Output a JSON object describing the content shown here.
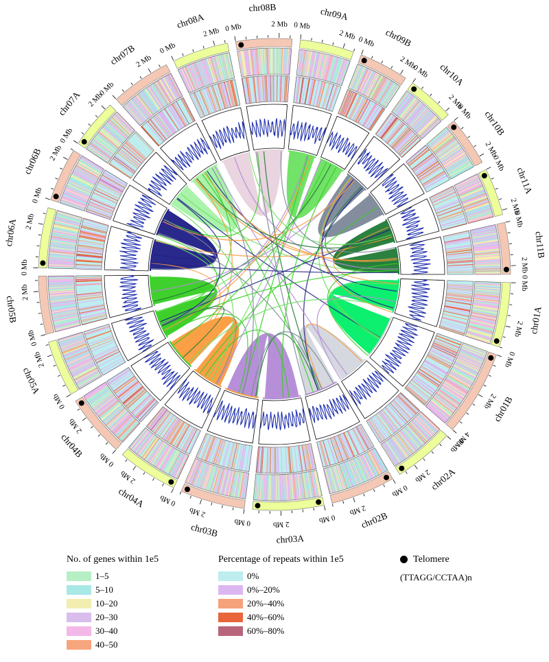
{
  "chart_data": {
    "type": "circos",
    "chromosomes": [
      {
        "name": "chr01A",
        "length_mb": 3.0,
        "color": "#00EE66",
        "band": "#ECFF9A",
        "telomere_start": false,
        "telomere_end": true
      },
      {
        "name": "chr01B",
        "length_mb": 4.0,
        "color": "#D3D6DD",
        "band": "#F4C8B4",
        "telomere_start": true,
        "telomere_end": false
      },
      {
        "name": "chr02A",
        "length_mb": 2.8,
        "color": "#D3D6DD",
        "band": "#ECFF9A",
        "telomere_start": false,
        "telomere_end": true
      },
      {
        "name": "chr02B",
        "length_mb": 3.0,
        "color": "#B289D6",
        "band": "#F4C8B4",
        "telomere_start": true,
        "telomere_end": false
      },
      {
        "name": "chr03A",
        "length_mb": 3.3,
        "color": "#B289D6",
        "band": "#ECFF9A",
        "telomere_start": true,
        "telomere_end": true
      },
      {
        "name": "chr03B",
        "length_mb": 3.0,
        "color": "#FA9B3C",
        "band": "#F4C8B4",
        "telomere_start": false,
        "telomere_end": true
      },
      {
        "name": "chr04A",
        "length_mb": 2.8,
        "color": "#FA9B3C",
        "band": "#ECFF9A",
        "telomere_start": true,
        "telomere_end": false
      },
      {
        "name": "chr04B",
        "length_mb": 2.9,
        "color": "#36CE22",
        "band": "#F4C8B4",
        "telomere_start": false,
        "telomere_end": true
      },
      {
        "name": "chr05A",
        "length_mb": 2.6,
        "color": "#36CE22",
        "band": "#ECFF9A",
        "telomere_start": false,
        "telomere_end": false
      },
      {
        "name": "chr05B",
        "length_mb": 2.7,
        "color": "#36CE22",
        "band": "#F4C8B4",
        "telomere_start": false,
        "telomere_end": false
      },
      {
        "name": "chr06A",
        "length_mb": 2.8,
        "color": "#1E1E86",
        "band": "#ECFF9A",
        "telomere_start": true,
        "telomere_end": false
      },
      {
        "name": "chr06B",
        "length_mb": 2.5,
        "color": "#1E1E86",
        "band": "#F4C8B4",
        "telomere_start": true,
        "telomere_end": false
      },
      {
        "name": "chr07A",
        "length_mb": 2.3,
        "color": "#A5F2A7",
        "band": "#ECFF9A",
        "telomere_start": true,
        "telomere_end": false
      },
      {
        "name": "chr07B",
        "length_mb": 2.8,
        "color": "#A5F2A7",
        "band": "#F4C8B4",
        "telomere_start": false,
        "telomere_end": false
      },
      {
        "name": "chr08A",
        "length_mb": 2.6,
        "color": "#E8D2DE",
        "band": "#ECFF9A",
        "telomere_start": false,
        "telomere_end": false
      },
      {
        "name": "chr08B",
        "length_mb": 2.6,
        "color": "#E8D2DE",
        "band": "#F4C8B4",
        "telomere_start": true,
        "telomere_end": false
      },
      {
        "name": "chr09A",
        "length_mb": 2.5,
        "color": "#6AE060",
        "band": "#ECFF9A",
        "telomere_start": false,
        "telomere_end": false
      },
      {
        "name": "chr09B",
        "length_mb": 2.3,
        "color": "#6AE060",
        "band": "#F4C8B4",
        "telomere_start": true,
        "telomere_end": false
      },
      {
        "name": "chr10A",
        "length_mb": 2.2,
        "color": "#7C8799",
        "band": "#ECFF9A",
        "telomere_start": true,
        "telomere_end": false
      },
      {
        "name": "chr10B",
        "length_mb": 2.3,
        "color": "#7C8799",
        "band": "#F4C8B4",
        "telomere_start": true,
        "telomere_end": false
      },
      {
        "name": "chr11A",
        "length_mb": 2.2,
        "color": "#207A35",
        "band": "#ECFF9A",
        "telomere_start": true,
        "telomere_end": false
      },
      {
        "name": "chr11B",
        "length_mb": 2.4,
        "color": "#207A35",
        "band": "#F4C8B4",
        "telomere_start": false,
        "telomere_end": true
      }
    ],
    "tick_labels": [
      "0 Mb",
      "2 Mb",
      "4 Mb"
    ],
    "tracks": [
      "Telomere",
      "No. of genes within 1e5",
      "Percentage of repeats within 1e5",
      "GC content line",
      "Synteny links"
    ],
    "legend": {
      "genes": {
        "title": "No. of genes within 1e5",
        "items": [
          {
            "label": "1–5",
            "color": "#B7EFC5"
          },
          {
            "label": "5–10",
            "color": "#A8E8E6"
          },
          {
            "label": "10–20",
            "color": "#F1EEB0"
          },
          {
            "label": "20–30",
            "color": "#D9BDED"
          },
          {
            "label": "30–40",
            "color": "#F4B8E8"
          },
          {
            "label": "40–50",
            "color": "#F6A57D"
          }
        ]
      },
      "repeats": {
        "title": "Percentage of repeats within 1e5",
        "items": [
          {
            "label": "0%",
            "color": "#BDEDEF"
          },
          {
            "label": "0%–20%",
            "color": "#DCB7EF"
          },
          {
            "label": "20%–40%",
            "color": "#F5A17A"
          },
          {
            "label": "40%–60%",
            "color": "#E8663A"
          },
          {
            "label": "60%–80%",
            "color": "#B8647A"
          }
        ]
      },
      "telomere": {
        "title": "Telomere",
        "sequence": "(TTAGG/CCTAA)n"
      }
    },
    "line_color": "#1E2FAF"
  }
}
